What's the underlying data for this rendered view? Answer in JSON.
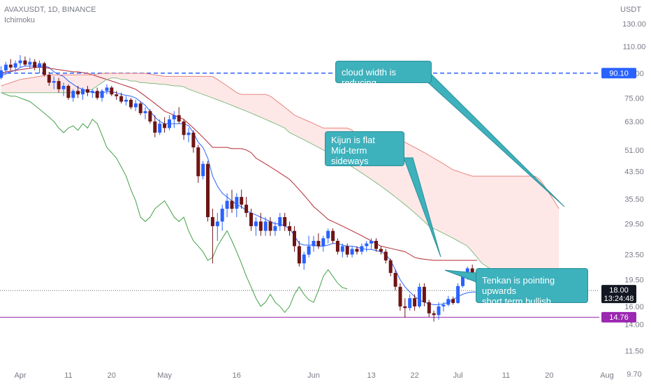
{
  "header": {
    "symbol": "AVAXUSDT, 1D, BINANCE",
    "indicator": "Ichimoku"
  },
  "chart_data": {
    "type": "candlestick",
    "symbol": "AVAXUSDT",
    "interval": "1D",
    "exchange": "BINANCE",
    "indicator": "Ichimoku",
    "y_axis": {
      "unit": "USDT",
      "scale": "log",
      "range": [
        9.0,
        155.0
      ],
      "ticks": [
        9.7,
        11.5,
        14.0,
        16.0,
        19.5,
        23.5,
        29.5,
        35.5,
        43.5,
        51.0,
        63.0,
        75.0,
        90.0,
        110.0,
        130.0
      ],
      "tick_labels": [
        "9.70",
        "11.50",
        "14.00",
        "16.00",
        "19.50",
        "23.50",
        "29.50",
        "35.50",
        "43.50",
        "51.00",
        "63.00",
        "75.00",
        "90.00",
        "110.00",
        "130.00"
      ]
    },
    "x_axis": {
      "labels": [
        "Apr",
        "11",
        "20",
        "May",
        "16",
        "Jun",
        "13",
        "22",
        "Jul",
        "11",
        "20",
        "Aug"
      ],
      "label_dates": [
        "2022-04-01",
        "2022-04-11",
        "2022-04-20",
        "2022-05-01",
        "2022-05-16",
        "2022-06-01",
        "2022-06-13",
        "2022-06-22",
        "2022-07-01",
        "2022-07-11",
        "2022-07-20",
        "2022-08-01"
      ]
    },
    "candles": {
      "start_date": "2022-03-28",
      "colors": {
        "up": "#2962ff",
        "down": "#6e1414"
      },
      "ohlc": [
        [
          87.0,
          95.0,
          86.0,
          92.0
        ],
        [
          92.0,
          98.0,
          89.0,
          96.0
        ],
        [
          96.0,
          100.0,
          92.0,
          94.0
        ],
        [
          94.0,
          99.0,
          91.0,
          97.0
        ],
        [
          97.0,
          103.0,
          94.0,
          99.0
        ],
        [
          99.0,
          102.0,
          95.0,
          96.0
        ],
        [
          96.0,
          101.0,
          93.0,
          98.0
        ],
        [
          98.0,
          100.0,
          92.0,
          94.0
        ],
        [
          94.0,
          99.0,
          90.0,
          97.0
        ],
        [
          97.0,
          98.0,
          88.0,
          89.0
        ],
        [
          89.0,
          91.0,
          82.0,
          84.0
        ],
        [
          84.0,
          88.0,
          80.0,
          85.0
        ],
        [
          85.0,
          87.0,
          78.0,
          80.0
        ],
        [
          80.0,
          84.0,
          76.0,
          82.0
        ],
        [
          82.0,
          83.0,
          74.0,
          75.0
        ],
        [
          75.0,
          80.0,
          73.0,
          79.0
        ],
        [
          79.0,
          82.0,
          75.0,
          77.0
        ],
        [
          77.0,
          81.0,
          74.0,
          80.0
        ],
        [
          80.0,
          82.0,
          76.0,
          78.0
        ],
        [
          78.0,
          80.0,
          75.0,
          79.0
        ],
        [
          79.0,
          81.0,
          74.0,
          75.0
        ],
        [
          75.0,
          80.0,
          73.0,
          79.0
        ],
        [
          79.0,
          83.0,
          77.0,
          81.0
        ],
        [
          81.0,
          82.0,
          76.0,
          77.0
        ],
        [
          77.0,
          79.0,
          74.0,
          76.0
        ],
        [
          76.0,
          78.0,
          72.0,
          73.0
        ],
        [
          73.0,
          76.0,
          71.0,
          74.0
        ],
        [
          74.0,
          75.0,
          69.0,
          70.0
        ],
        [
          70.0,
          74.0,
          68.0,
          72.0
        ],
        [
          72.0,
          73.0,
          66.0,
          67.0
        ],
        [
          67.0,
          70.0,
          64.0,
          68.0
        ],
        [
          68.0,
          69.0,
          62.0,
          63.0
        ],
        [
          63.0,
          66.0,
          56.0,
          58.0
        ],
        [
          58.0,
          64.0,
          57.0,
          62.0
        ],
        [
          62.0,
          65.0,
          58.0,
          60.0
        ],
        [
          60.0,
          66.0,
          59.0,
          64.0
        ],
        [
          64.0,
          68.0,
          60.0,
          66.0
        ],
        [
          66.0,
          70.0,
          62.0,
          63.0
        ],
        [
          63.0,
          64.0,
          55.0,
          57.0
        ],
        [
          57.0,
          60.0,
          54.0,
          58.0
        ],
        [
          58.0,
          59.0,
          50.0,
          52.0
        ],
        [
          52.0,
          53.0,
          40.0,
          42.0
        ],
        [
          42.0,
          47.0,
          41.0,
          46.0
        ],
        [
          46.0,
          47.0,
          30.0,
          31.0
        ],
        [
          31.0,
          33.0,
          22.0,
          29.0
        ],
        [
          29.0,
          32.0,
          26.0,
          30.0
        ],
        [
          30.0,
          34.0,
          28.0,
          33.0
        ],
        [
          33.0,
          37.0,
          31.0,
          35.0
        ],
        [
          35.0,
          38.0,
          32.0,
          33.0
        ],
        [
          33.0,
          37.0,
          31.0,
          36.0
        ],
        [
          36.0,
          38.0,
          33.0,
          34.0
        ],
        [
          34.0,
          36.0,
          31.0,
          32.0
        ],
        [
          32.0,
          33.0,
          28.0,
          29.0
        ],
        [
          29.0,
          31.0,
          27.0,
          30.0
        ],
        [
          30.0,
          32.0,
          27.0,
          28.0
        ],
        [
          28.0,
          31.0,
          27.0,
          30.0
        ],
        [
          30.0,
          31.0,
          27.0,
          28.0
        ],
        [
          28.0,
          30.0,
          27.0,
          29.0
        ],
        [
          29.0,
          32.0,
          28.0,
          31.0
        ],
        [
          31.0,
          32.0,
          28.0,
          29.0
        ],
        [
          29.0,
          30.0,
          27.0,
          28.0
        ],
        [
          28.0,
          29.0,
          24.0,
          25.0
        ],
        [
          25.0,
          26.0,
          21.5,
          22.0
        ],
        [
          22.0,
          24.0,
          21.0,
          23.5
        ],
        [
          23.5,
          27.0,
          23.0,
          25.0
        ],
        [
          25.0,
          27.0,
          24.0,
          26.0
        ],
        [
          26.0,
          27.5,
          24.5,
          25.0
        ],
        [
          25.0,
          27.0,
          24.0,
          26.5
        ],
        [
          26.5,
          28.5,
          25.5,
          28.0
        ],
        [
          28.0,
          28.5,
          25.5,
          26.0
        ],
        [
          26.0,
          26.5,
          23.5,
          24.0
        ],
        [
          24.0,
          25.5,
          23.0,
          25.0
        ],
        [
          25.0,
          25.5,
          23.0,
          23.5
        ],
        [
          23.5,
          25.0,
          23.0,
          24.5
        ],
        [
          24.5,
          25.0,
          23.5,
          24.0
        ],
        [
          24.0,
          25.5,
          23.5,
          25.0
        ],
        [
          25.0,
          26.0,
          24.0,
          25.5
        ],
        [
          25.5,
          26.5,
          24.5,
          26.0
        ],
        [
          26.0,
          26.5,
          24.0,
          24.5
        ],
        [
          24.5,
          25.0,
          23.5,
          24.0
        ],
        [
          24.0,
          24.5,
          22.0,
          22.5
        ],
        [
          22.5,
          22.8,
          20.0,
          20.5
        ],
        [
          20.5,
          21.0,
          18.0,
          18.5
        ],
        [
          18.5,
          19.0,
          15.5,
          16.0
        ],
        [
          16.0,
          17.0,
          14.7,
          15.8
        ],
        [
          15.8,
          17.5,
          15.5,
          17.0
        ],
        [
          17.0,
          17.5,
          15.5,
          16.0
        ],
        [
          16.0,
          19.0,
          15.8,
          18.5
        ],
        [
          18.5,
          19.0,
          16.0,
          16.5
        ],
        [
          16.5,
          16.8,
          14.8,
          15.2
        ],
        [
          15.2,
          15.5,
          14.3,
          15.0
        ],
        [
          15.0,
          16.5,
          14.5,
          16.0
        ],
        [
          16.0,
          16.5,
          15.4,
          16.2
        ],
        [
          16.2,
          17.3,
          16.0,
          16.9
        ],
        [
          16.9,
          17.2,
          16.2,
          16.4
        ],
        [
          16.4,
          19.0,
          16.3,
          18.6
        ],
        [
          18.6,
          20.5,
          18.4,
          20.2
        ],
        [
          20.2,
          21.5,
          19.5,
          21.2
        ],
        [
          21.2,
          21.8,
          19.8,
          20.0
        ],
        [
          20.0,
          20.5,
          18.8,
          19.1
        ],
        [
          19.1,
          19.4,
          17.8,
          18.0
        ]
      ]
    },
    "lines": [
      {
        "name": "Tenkan",
        "color": "#2962ff",
        "start_offset": 0,
        "values": [
          88.0,
          90.0,
          91.0,
          92.0,
          94.0,
          95.0,
          95.0,
          95.0,
          95.0,
          95.0,
          94.0,
          91.0,
          89.0,
          88.0,
          85.0,
          83.0,
          81.0,
          80.0,
          79.0,
          78.0,
          78.0,
          78.0,
          78.5,
          78.5,
          78.0,
          77.0,
          76.5,
          76.0,
          75.0,
          73.0,
          71.0,
          68.0,
          65.0,
          63.0,
          62.0,
          62.0,
          62.0,
          62.0,
          62.0,
          61.0,
          58.0,
          54.0,
          52.0,
          48.0,
          42.0,
          39.0,
          37.0,
          36.0,
          35.0,
          34.0,
          33.5,
          32.5,
          32.0,
          31.5,
          31.0,
          30.5,
          30.0,
          29.5,
          29.5,
          29.0,
          28.5,
          27.0,
          25.5,
          25.2,
          25.2,
          25.2,
          25.0,
          25.0,
          25.2,
          25.5,
          25.5,
          25.2,
          25.0,
          25.0,
          24.8,
          24.6,
          24.4,
          24.4,
          24.2,
          24.0,
          23.5,
          22.5,
          21.0,
          19.5,
          18.5,
          17.8,
          17.2,
          16.8,
          16.5,
          16.3,
          16.2,
          16.2,
          16.3,
          16.5,
          16.8,
          17.2,
          17.5,
          17.7,
          17.8,
          17.8
        ]
      },
      {
        "name": "Kijun",
        "color": "#b22833",
        "start_offset": 0,
        "values": [
          90.0,
          91.0,
          91.5,
          92.0,
          92.5,
          93.0,
          93.5,
          94.0,
          94.0,
          94.0,
          93.5,
          93.0,
          92.5,
          92.0,
          91.5,
          91.0,
          91.0,
          90.5,
          90.0,
          89.0,
          88.0,
          87.0,
          86.0,
          85.0,
          84.0,
          83.0,
          82.0,
          81.0,
          80.0,
          78.0,
          76.0,
          74.0,
          72.0,
          70.0,
          68.0,
          67.0,
          66.0,
          65.0,
          64.0,
          62.0,
          60.0,
          58.0,
          56.0,
          54.0,
          52.0,
          52.0,
          52.0,
          52.0,
          51.5,
          51.5,
          51.5,
          51.0,
          50.0,
          48.0,
          47.0,
          46.0,
          45.0,
          44.0,
          43.0,
          42.0,
          41.0,
          39.5,
          38.0,
          36.5,
          35.0,
          33.5,
          32.5,
          31.5,
          30.5,
          30.0,
          29.5,
          29.0,
          28.5,
          28.0,
          27.5,
          27.0,
          26.5,
          26.0,
          25.5,
          25.0,
          24.8,
          24.6,
          24.4,
          24.2,
          24.0,
          23.5,
          23.0,
          22.8,
          22.7,
          22.6,
          22.5,
          22.5,
          22.5,
          22.5,
          22.5,
          22.5,
          22.5,
          22.5,
          22.5,
          22.5
        ]
      },
      {
        "name": "Chikou",
        "color": "#43a047",
        "start_offset": 0,
        "values": [
          78.0,
          77.0,
          76.0,
          76.0,
          75.0,
          74.0,
          73.0,
          71.0,
          69.0,
          67.0,
          65.0,
          63.0,
          60.0,
          58.0,
          60.0,
          61.0,
          59.0,
          62.0,
          60.0,
          64.0,
          62.0,
          57.0,
          52.0,
          50.0,
          48.0,
          45.0,
          42.0,
          38.0,
          35.0,
          31.0,
          30.0,
          31.0,
          33.0,
          34.0,
          35.0,
          33.0,
          31.0,
          30.0,
          31.0,
          28.0,
          26.0,
          25.0,
          24.0,
          22.5,
          23.0,
          25.0,
          26.5,
          28.0,
          26.0,
          24.0,
          22.0,
          20.0,
          18.5,
          17.0,
          16.0,
          16.5,
          17.5,
          16.5,
          16.0,
          15.3,
          16.0,
          17.5,
          18.5,
          17.5,
          16.8,
          16.5,
          18.0,
          20.0,
          21.0,
          20.0,
          19.0,
          18.4,
          18.2
        ]
      },
      {
        "name": "Senkou A",
        "color": "#83bd85",
        "start_offset": 0,
        "values": [
          78.0,
          78.0,
          78.0,
          78.0,
          78.0,
          78.0,
          78.0,
          78.0,
          78.0,
          78.0,
          78.0,
          78.0,
          78.0,
          78.0,
          78.0,
          78.0,
          78.0,
          78.5,
          79.0,
          80.0,
          82.0,
          84.0,
          86.0,
          87.0,
          87.0,
          86.0,
          86.0,
          85.0,
          85.0,
          84.0,
          84.0,
          83.5,
          83.5,
          83.0,
          83.0,
          82.5,
          82.0,
          82.0,
          81.5,
          80.0,
          79.0,
          78.0,
          77.0,
          76.0,
          75.0,
          74.0,
          73.0,
          72.0,
          71.0,
          70.0,
          69.0,
          68.0,
          67.0,
          66.0,
          65.0,
          64.0,
          63.0,
          62.0,
          61.0,
          60.0,
          58.0,
          57.0,
          56.0,
          55.0,
          54.0,
          53.0,
          52.0,
          51.0,
          50.0,
          49.0,
          48.0,
          47.0,
          46.0,
          45.0,
          44.0,
          43.0,
          42.0,
          41.0,
          40.0,
          39.0,
          38.0,
          37.0,
          36.0,
          35.0,
          34.0,
          33.0,
          32.0,
          31.0,
          30.0,
          29.0,
          28.5,
          28.0,
          27.5,
          27.0,
          26.5,
          26.0,
          25.5,
          25.0,
          24.0,
          23.0,
          22.0,
          21.5,
          21.0,
          20.5,
          20.0,
          19.8,
          19.6,
          19.5,
          19.5,
          19.5,
          19.8,
          20.0,
          20.5,
          20.8,
          21.0,
          20.8,
          20.8
        ]
      },
      {
        "name": "Senkou B",
        "color": "#e9857e",
        "start_offset": 0,
        "values": [
          82.0,
          83.0,
          84.0,
          85.0,
          86.0,
          86.5,
          87.0,
          87.5,
          88.0,
          88.5,
          89.0,
          89.0,
          89.0,
          89.0,
          89.0,
          89.0,
          89.0,
          89.0,
          89.0,
          89.0,
          89.5,
          90.0,
          90.0,
          90.0,
          90.0,
          90.0,
          90.0,
          90.0,
          90.0,
          90.0,
          90.0,
          89.5,
          89.0,
          88.5,
          88.0,
          88.0,
          88.0,
          88.0,
          88.0,
          88.0,
          88.0,
          88.0,
          88.0,
          88.0,
          88.0,
          86.0,
          84.0,
          82.0,
          80.0,
          78.0,
          77.0,
          77.0,
          77.0,
          77.0,
          77.0,
          77.0,
          76.0,
          74.0,
          72.0,
          70.0,
          68.0,
          66.0,
          65.0,
          64.0,
          63.0,
          62.0,
          61.0,
          60.0,
          60.0,
          60.0,
          60.0,
          60.0,
          60.0,
          59.0,
          57.0,
          55.0,
          55.0,
          55.0,
          55.0,
          55.0,
          55.0,
          55.0,
          55.0,
          55.0,
          54.0,
          53.0,
          52.0,
          51.0,
          50.0,
          49.0,
          48.0,
          47.0,
          46.0,
          45.0,
          44.0,
          43.5,
          43.0,
          42.5,
          42.0,
          42.0,
          42.0,
          42.0,
          42.0,
          42.0,
          42.0,
          42.0,
          42.0,
          42.0,
          42.0,
          42.0,
          42.0,
          42.0,
          41.0,
          39.0,
          37.0,
          35.0,
          33.0
        ]
      }
    ],
    "horizontal_lines": [
      {
        "value": 90.1,
        "label": "90.10",
        "color": "#2962ff",
        "style": "dashed",
        "label_bg": "#2962ff"
      },
      {
        "value": 14.76,
        "label": "14.76",
        "color": "#9c27b0",
        "style": "solid",
        "label_bg": "#9c27b0"
      },
      {
        "value": 18.0,
        "label": "18.00",
        "color": "#5d606b",
        "style": "dotted",
        "label_bg": "#131722",
        "countdown": "13:24:48"
      }
    ],
    "annotations": [
      {
        "lines": [
          "cloud width is reducing"
        ],
        "pointer": "to cloud edge"
      },
      {
        "lines": [
          "Kijun is flat",
          "Mid-term sideways"
        ],
        "pointer": "to Kijun"
      },
      {
        "lines": [
          "Tenkan is pointing upwards",
          "short term bullish"
        ],
        "pointer": "to Tenkan"
      }
    ]
  }
}
